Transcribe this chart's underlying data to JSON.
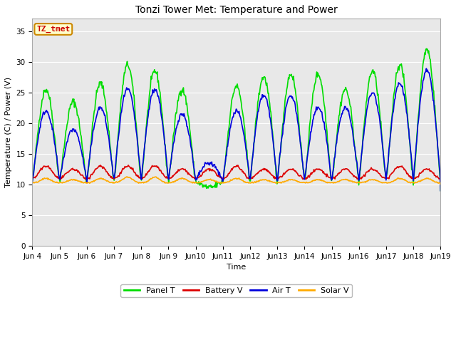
{
  "title": "Tonzi Tower Met: Temperature and Power",
  "xlabel": "Time",
  "ylabel": "Temperature (C) / Power (V)",
  "ylim": [
    0,
    37
  ],
  "yticks": [
    0,
    5,
    10,
    15,
    20,
    25,
    30,
    35
  ],
  "outer_bg": "#ffffff",
  "plot_bg": "#e8e8e8",
  "panel_t_color": "#00dd00",
  "battery_v_color": "#dd0000",
  "air_t_color": "#0000dd",
  "solar_v_color": "#ffaa00",
  "line_width": 1.2,
  "watermark_text": "TZ_tmet",
  "watermark_bg": "#ffffcc",
  "watermark_border": "#cc8800",
  "legend_labels": [
    "Panel T",
    "Battery V",
    "Air T",
    "Solar V"
  ],
  "n_days": 15,
  "points_per_day": 48,
  "title_fontsize": 10,
  "axis_label_fontsize": 8,
  "tick_fontsize": 7.5,
  "legend_fontsize": 8
}
